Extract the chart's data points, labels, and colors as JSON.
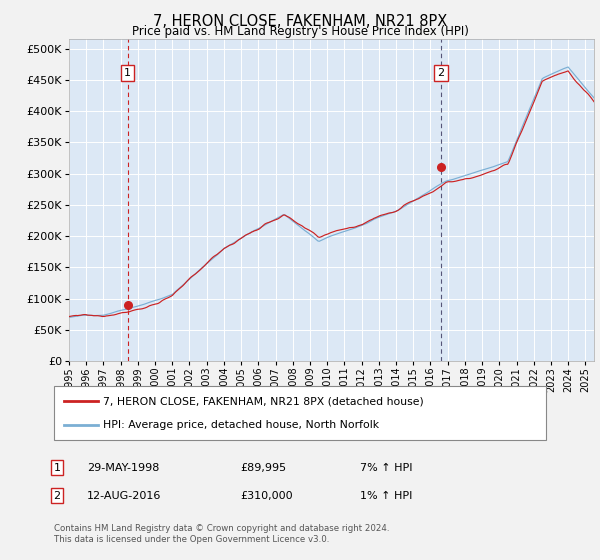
{
  "title": "7, HERON CLOSE, FAKENHAM, NR21 8PX",
  "subtitle": "Price paid vs. HM Land Registry's House Price Index (HPI)",
  "ytick_values": [
    0,
    50000,
    100000,
    150000,
    200000,
    250000,
    300000,
    350000,
    400000,
    450000,
    500000
  ],
  "ylim": [
    0,
    515000
  ],
  "xlim_start": 1995.0,
  "xlim_end": 2025.5,
  "hpi_color": "#7bafd4",
  "price_color": "#cc2222",
  "bg_color": "#dce8f5",
  "grid_color": "#ffffff",
  "fig_color": "#f0f0f0",
  "marker1_date": 1998.41,
  "marker1_price": 89995,
  "marker1_label": "29-MAY-1998",
  "marker1_value_str": "£89,995",
  "marker1_hpi_str": "7% ↑ HPI",
  "marker2_date": 2016.62,
  "marker2_price": 310000,
  "marker2_label": "12-AUG-2016",
  "marker2_value_str": "£310,000",
  "marker2_hpi_str": "1% ↑ HPI",
  "legend_label_price": "7, HERON CLOSE, FAKENHAM, NR21 8PX (detached house)",
  "legend_label_hpi": "HPI: Average price, detached house, North Norfolk",
  "footnote": "Contains HM Land Registry data © Crown copyright and database right 2024.\nThis data is licensed under the Open Government Licence v3.0.",
  "xticks": [
    1995,
    1996,
    1997,
    1998,
    1999,
    2000,
    2001,
    2002,
    2003,
    2004,
    2005,
    2006,
    2007,
    2008,
    2009,
    2010,
    2011,
    2012,
    2013,
    2014,
    2015,
    2016,
    2017,
    2018,
    2019,
    2020,
    2021,
    2022,
    2023,
    2024,
    2025
  ]
}
